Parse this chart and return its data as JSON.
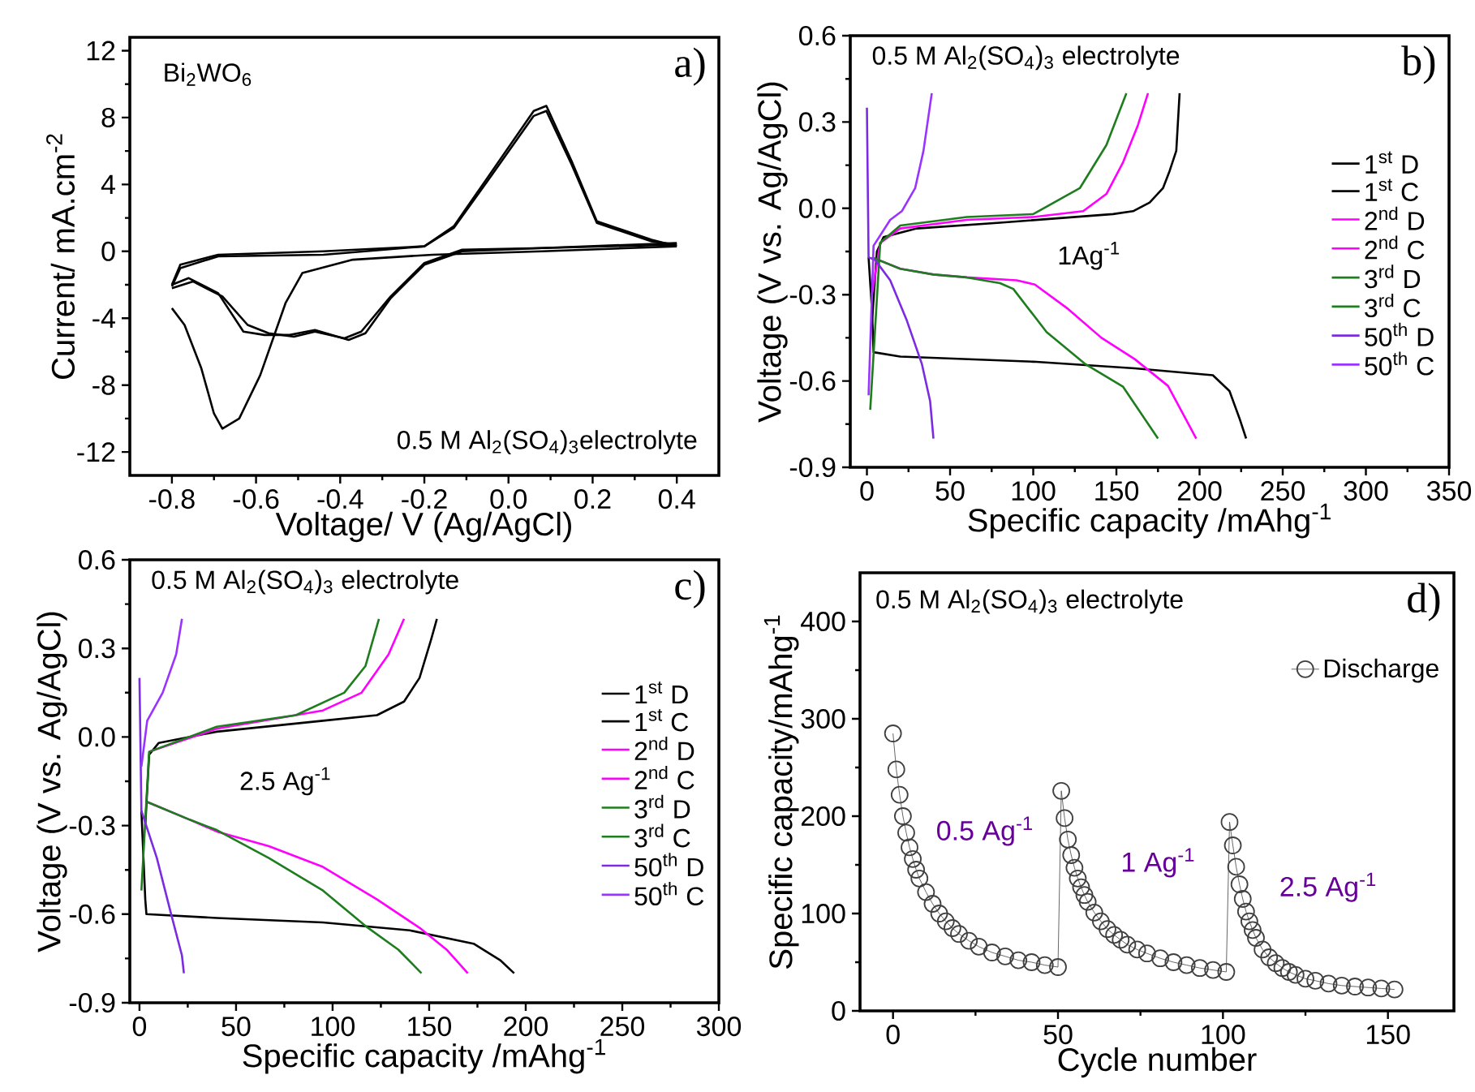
{
  "chart_data": [
    {
      "type": "line",
      "xlabel": "Voltage/ V (Ag/AgCl)",
      "ylabel": "Current/ mA.cm$^{-2}$",
      "xlim": [
        -0.9,
        0.5
      ],
      "ylim": [
        -13.4,
        12.8
      ],
      "xticks": [
        -0.8,
        -0.6,
        -0.4,
        -0.2,
        {
          "value": 0,
          "label": "0.0"
        },
        0.2,
        0.4
      ],
      "yticks": [
        -12,
        -8,
        -4,
        0,
        4,
        8,
        12
      ],
      "annotations": [
        "Bi$_{2}$WO$_{6}$",
        "a)",
        "0.5 M Al$_{2}$(SO$_{4}$)$_{3}$electrolyte"
      ],
      "series": [
        {
          "color": "#000000",
          "x": [
            -0.8,
            -0.77,
            -0.73,
            -0.7,
            -0.68,
            -0.64,
            -0.59,
            -0.53,
            -0.49,
            -0.37,
            -0.18,
            0.08,
            0.4
          ],
          "values": [
            -3.4,
            -4.4,
            -7.0,
            -9.7,
            -10.6,
            -10.0,
            -7.4,
            -3.1,
            -1.3,
            -0.5,
            -0.2,
            0.0,
            0.3
          ]
        },
        {
          "color": "#000000",
          "x": [
            -0.8,
            -0.78,
            -0.69,
            -0.44,
            -0.2,
            -0.13,
            -0.05,
            0.06,
            0.09,
            0.15,
            0.21,
            0.34,
            0.4
          ],
          "values": [
            -2.1,
            -1.0,
            -0.3,
            -0.2,
            0.3,
            1.5,
            4.4,
            8.4,
            8.7,
            5.4,
            1.8,
            0.7,
            0.3
          ]
        },
        {
          "color": "#000000",
          "x": [
            -0.8,
            -0.76,
            -0.69,
            -0.63,
            -0.58,
            -0.52,
            -0.46,
            -0.38,
            -0.34,
            -0.28,
            -0.2,
            -0.11,
            0.08,
            0.4
          ],
          "values": [
            -2.0,
            -1.6,
            -2.5,
            -4.8,
            -5.0,
            -5.0,
            -4.7,
            -5.3,
            -4.9,
            -2.8,
            -0.8,
            0.0,
            0.2,
            0.4
          ]
        },
        {
          "color": "#000000",
          "x": [
            -0.8,
            -0.75,
            -0.68,
            -0.62,
            -0.57,
            -0.51,
            -0.46,
            -0.39,
            -0.35,
            -0.28,
            -0.2,
            -0.11,
            0.08,
            0.4
          ],
          "values": [
            -2.2,
            -1.8,
            -2.7,
            -4.4,
            -4.9,
            -5.1,
            -4.8,
            -5.2,
            -4.8,
            -2.7,
            -0.7,
            0.1,
            0.2,
            0.5
          ]
        },
        {
          "color": "#000000",
          "x": [
            -0.8,
            -0.78,
            -0.69,
            -0.44,
            -0.2,
            -0.13,
            -0.05,
            0.06,
            0.09,
            0.15,
            0.21,
            0.34,
            0.4
          ],
          "values": [
            -2.0,
            -0.8,
            -0.2,
            0.0,
            0.3,
            1.4,
            4.2,
            8.1,
            8.4,
            5.2,
            1.7,
            0.6,
            0.4
          ]
        }
      ]
    },
    {
      "type": "line",
      "xlabel": "Specific capacity /mAhg$^{-1}$",
      "ylabel": "Voltage (V vs. Ag/AgCl)",
      "xlim": [
        -10,
        350
      ],
      "ylim": [
        -0.9,
        0.6
      ],
      "xticks": [
        0,
        50,
        100,
        150,
        200,
        250,
        300,
        350
      ],
      "yticks": [
        -0.9,
        -0.6,
        -0.3,
        {
          "value": 0,
          "label": "0.0"
        },
        0.3,
        0.6
      ],
      "legend": "right",
      "annotations": [
        "0.5 M Al$_{2}$(SO$_{4}$)$_{3}$ electrolyte",
        "b)",
        "1Ag$^{-1}$"
      ],
      "series": [
        {
          "name": "1$^{st}$ D",
          "color": "#000000",
          "x": [
            1,
            3,
            4,
            20,
            100,
            161,
            208,
            218,
            224,
            228
          ],
          "values": [
            -0.17,
            -0.35,
            -0.5,
            -0.515,
            -0.533,
            -0.556,
            -0.58,
            -0.635,
            -0.73,
            -0.8
          ]
        },
        {
          "name": "1$^{st}$ C",
          "color": "#000000",
          "x": [
            3,
            6,
            10,
            30,
            80,
            148,
            160,
            170,
            178,
            182,
            186,
            187,
            188
          ],
          "values": [
            -0.4,
            -0.15,
            -0.1,
            -0.07,
            -0.05,
            -0.02,
            -0.01,
            0.02,
            0.07,
            0.13,
            0.2,
            0.3,
            0.4
          ]
        },
        {
          "name": "2$^{nd}$ D",
          "color": "#ff00ff",
          "x": [
            3,
            20,
            40,
            60,
            90,
            101,
            121,
            141,
            161,
            181,
            198
          ],
          "values": [
            -0.17,
            -0.21,
            -0.23,
            -0.24,
            -0.25,
            -0.265,
            -0.35,
            -0.45,
            -0.524,
            -0.617,
            -0.8
          ]
        },
        {
          "name": "2$^{nd}$ C",
          "color": "#ff00ff",
          "x": [
            3,
            8,
            20,
            60,
            100,
            130,
            144,
            154,
            163,
            169
          ],
          "values": [
            -0.3,
            -0.12,
            -0.07,
            -0.04,
            -0.03,
            -0.01,
            0.05,
            0.16,
            0.29,
            0.4
          ]
        },
        {
          "name": "3$^{rd}$ D",
          "color": "#1e7d1e",
          "x": [
            3,
            20,
            40,
            60,
            80,
            88,
            108,
            131,
            154,
            175
          ],
          "values": [
            -0.17,
            -0.21,
            -0.23,
            -0.24,
            -0.26,
            -0.28,
            -0.43,
            -0.54,
            -0.62,
            -0.8
          ]
        },
        {
          "name": "3$^{rd}$ C",
          "color": "#1e7d1e",
          "x": [
            2,
            8,
            20,
            60,
            100,
            128,
            144,
            156
          ],
          "values": [
            -0.7,
            -0.12,
            -0.06,
            -0.03,
            -0.02,
            0.07,
            0.22,
            0.4
          ]
        },
        {
          "name": "50$^{th}$ D",
          "color": "#7b2be2",
          "x": [
            0,
            1,
            5,
            14,
            24,
            33,
            38,
            40
          ],
          "values": [
            0.35,
            -0.17,
            -0.18,
            -0.25,
            -0.39,
            -0.54,
            -0.67,
            -0.8
          ]
        },
        {
          "name": "50$^{th}$ C",
          "color": "#9933ff",
          "x": [
            1,
            4,
            14,
            21,
            29,
            34,
            39
          ],
          "values": [
            -0.65,
            -0.13,
            -0.04,
            -0.01,
            0.07,
            0.2,
            0.4
          ]
        }
      ]
    },
    {
      "type": "line",
      "xlabel": "Specific capacity /mAhg$^{-1}$",
      "ylabel": "Voltage (V vs. Ag/AgCl)",
      "xlim": [
        -5,
        300
      ],
      "ylim": [
        -0.9,
        0.6
      ],
      "xticks": [
        0,
        50,
        100,
        150,
        200,
        250,
        300
      ],
      "yticks": [
        -0.9,
        -0.6,
        -0.3,
        {
          "value": 0,
          "label": "0.0"
        },
        0.3,
        0.6
      ],
      "legend": "right",
      "annotations": [
        "0.5 M Al$_{2}$(SO$_{4}$)$_{3}$ electrolyte",
        "c)",
        "2.5 Ag$^{-1}$"
      ],
      "series": [
        {
          "name": "1$^{st}$ D",
          "color": "#000000",
          "x": [
            1,
            3,
            3.6,
            40,
            95,
            140,
            173,
            187,
            194
          ],
          "values": [
            -0.25,
            -0.55,
            -0.6,
            -0.613,
            -0.628,
            -0.655,
            -0.7,
            -0.757,
            -0.8
          ]
        },
        {
          "name": "1$^{st}$ C",
          "color": "#000000",
          "x": [
            3,
            5,
            10,
            40,
            95,
            123,
            137,
            145,
            151,
            154
          ],
          "values": [
            -0.3,
            -0.06,
            -0.02,
            0.018,
            0.055,
            0.074,
            0.12,
            0.2,
            0.33,
            0.4
          ]
        },
        {
          "name": "2$^{nd}$ D",
          "color": "#ff00ff",
          "x": [
            4,
            26,
            40,
            67,
            95,
            123,
            145,
            159,
            170
          ],
          "values": [
            -0.22,
            -0.28,
            -0.32,
            -0.37,
            -0.44,
            -0.55,
            -0.646,
            -0.72,
            -0.8
          ]
        },
        {
          "name": "2$^{nd}$ C",
          "color": "#ff00ff",
          "x": [
            5,
            40,
            95,
            115,
            129,
            137
          ],
          "values": [
            -0.05,
            0.028,
            0.09,
            0.15,
            0.28,
            0.4
          ]
        },
        {
          "name": "3$^{rd}$ D",
          "color": "#1e7d1e",
          "x": [
            4,
            26,
            40,
            67,
            95,
            117,
            134,
            146
          ],
          "values": [
            -0.22,
            -0.28,
            -0.315,
            -0.41,
            -0.52,
            -0.64,
            -0.72,
            -0.8
          ]
        },
        {
          "name": "3$^{rd}$ C",
          "color": "#1e7d1e",
          "x": [
            1,
            5,
            40,
            81,
            106,
            117,
            124
          ],
          "values": [
            -0.52,
            -0.05,
            0.035,
            0.074,
            0.15,
            0.24,
            0.4
          ]
        },
        {
          "name": "50$^{th}$ D",
          "color": "#7b2be2",
          "x": [
            0,
            1,
            9,
            16,
            22,
            23
          ],
          "values": [
            0.2,
            -0.25,
            -0.41,
            -0.59,
            -0.74,
            -0.8
          ]
        },
        {
          "name": "50$^{th}$ C",
          "color": "#9933ff",
          "x": [
            1,
            4,
            12,
            19,
            22
          ],
          "values": [
            -0.1,
            0.055,
            0.15,
            0.28,
            0.4
          ]
        }
      ]
    },
    {
      "type": "line",
      "xlabel": "Cycle number",
      "ylabel": "Specific capacity/mAhg$^{-1}$",
      "xlim": [
        -10,
        170
      ],
      "ylim": [
        0,
        450
      ],
      "xticks": [
        0,
        50,
        100,
        150
      ],
      "yticks": [
        0,
        100,
        200,
        300,
        400
      ],
      "legend": "top right",
      "marker": "circle",
      "annotations": [
        "0.5 M Al$_{2}$(SO$_{4}$)$_{3}$ electrolyte",
        "d)",
        "0.5 Ag$^{-1}$",
        "1 Ag$^{-1}$",
        "2.5 Ag$^{-1}$"
      ],
      "series": [
        {
          "name": "Discharge",
          "color": "#404040",
          "x": [
            0,
            1,
            2,
            3,
            4,
            5,
            6,
            7,
            8,
            10,
            12,
            14,
            16,
            18,
            20,
            23,
            26,
            30,
            34,
            38,
            42,
            46,
            50,
            51,
            52,
            53,
            54,
            55,
            56,
            57,
            58,
            59,
            61,
            63,
            65,
            67,
            69,
            71,
            74,
            77,
            81,
            85,
            89,
            93,
            97,
            101,
            102,
            103,
            104,
            105,
            106,
            107,
            108,
            109,
            110,
            112,
            114,
            116,
            118,
            120,
            122,
            125,
            128,
            132,
            136,
            140,
            144,
            148,
            152
          ],
          "values": [
            285,
            248,
            222,
            200,
            183,
            168,
            156,
            145,
            136,
            122,
            110,
            100,
            92,
            85,
            79,
            72,
            66,
            60,
            56,
            52,
            50,
            47,
            45,
            226,
            198,
            176,
            160,
            147,
            136,
            127,
            119,
            112,
            101,
            92,
            84,
            78,
            73,
            68,
            63,
            59,
            54,
            50,
            47,
            44,
            42,
            40,
            194,
            170,
            148,
            130,
            115,
            102,
            92,
            83,
            75,
            63,
            55,
            49,
            44,
            40,
            37,
            33,
            31,
            28,
            26,
            25,
            24,
            23,
            22
          ]
        }
      ]
    }
  ]
}
